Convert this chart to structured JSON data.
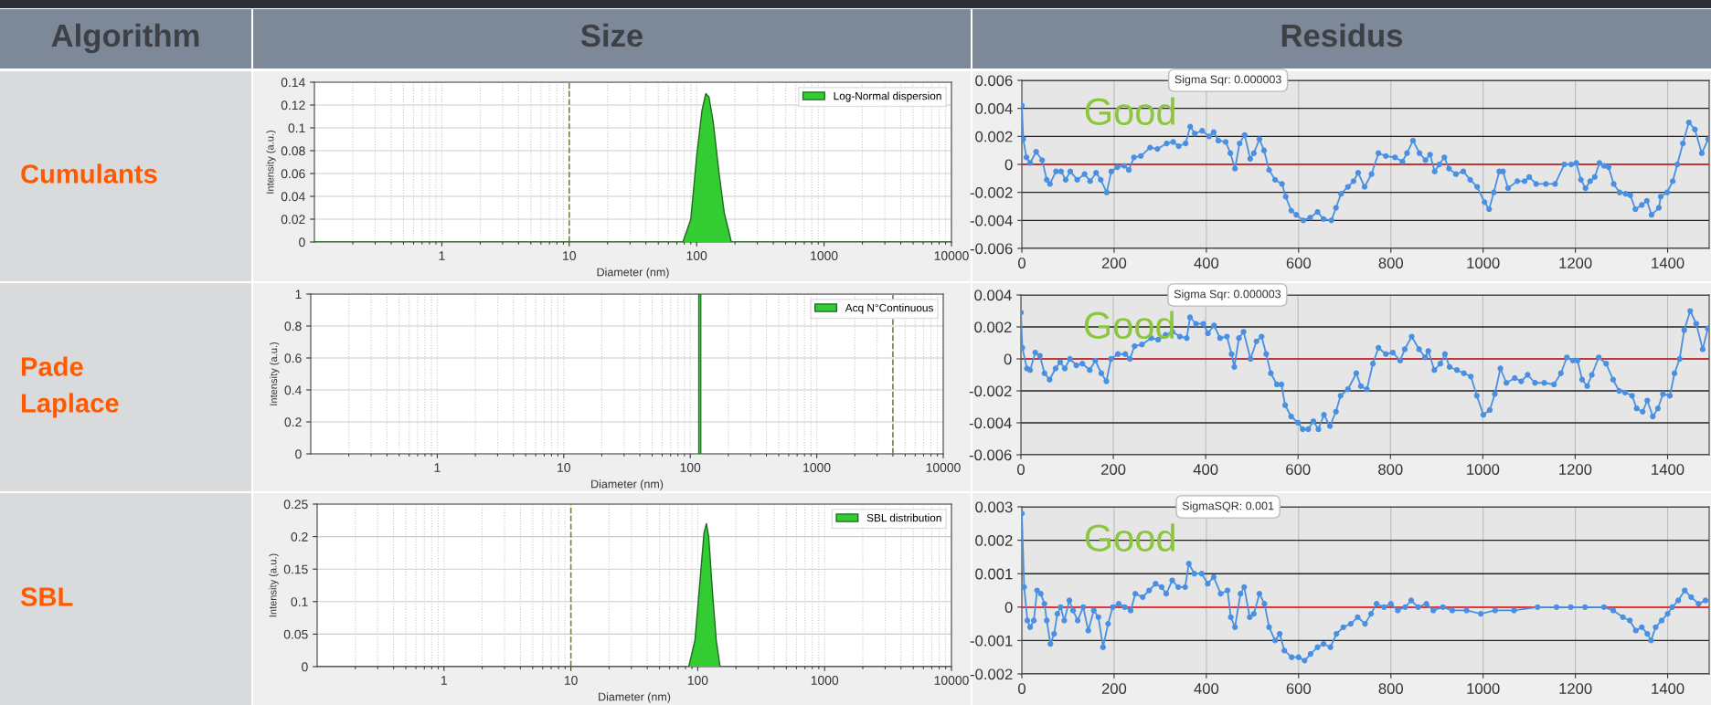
{
  "chart_data": [
    {
      "type": "other",
      "annotations": [
        "Algorithm",
        "Size",
        "Residus",
        "Cumulants",
        "Pade\nLaplace",
        "SBL"
      ]
    },
    {
      "type": "area",
      "xlabel": "Diameter (nm)",
      "ylabel": "Intensity (a.u.)",
      "log": "x",
      "xlim": [
        0.1,
        10000
      ],
      "xticks": [
        1,
        10,
        100,
        1000,
        10000
      ],
      "ylim": [
        0,
        0.14
      ],
      "yticks": [
        0,
        0.02,
        0.04,
        0.06,
        0.08,
        0.1,
        0.12,
        0.14
      ],
      "grid": true,
      "legend": "top right",
      "ref_lines": [
        {
          "axis": "x",
          "value": 10,
          "color": "#7f8050",
          "line_style": "dashed"
        }
      ],
      "series": [
        {
          "name": "Log-Normal dispersion",
          "color": "#33cc33",
          "x": [
            0.1,
            78,
            90,
            100,
            110,
            118,
            125,
            135,
            150,
            165,
            180,
            187,
            10000
          ],
          "values": [
            0,
            0,
            0.02,
            0.075,
            0.115,
            0.13,
            0.127,
            0.105,
            0.06,
            0.025,
            0.008,
            0,
            0
          ]
        }
      ]
    },
    {
      "type": "line",
      "xlim": [
        0,
        1490
      ],
      "xticks": [
        0,
        200,
        400,
        600,
        800,
        1000,
        1200,
        1400
      ],
      "ylim": [
        -0.006,
        0.006
      ],
      "yticks": [
        -0.006,
        -0.004,
        -0.002,
        0,
        0.002,
        0.004,
        0.006
      ],
      "grid": true,
      "marker": "circle",
      "line_style": "solid",
      "ref_lines": [
        {
          "axis": "y",
          "value": 0,
          "color": "#e03030",
          "line_style": "solid"
        }
      ],
      "annotations": [
        "Sigma Sqr: 0.000003",
        "Good"
      ],
      "series": [
        {
          "color": "#4a90e2",
          "x": [
            0,
            3,
            10,
            18,
            31,
            44,
            54,
            61,
            74,
            85,
            95,
            105,
            120,
            136,
            148,
            161,
            171,
            184,
            194,
            207,
            222,
            232,
            243,
            258,
            278,
            294,
            314,
            328,
            340,
            355,
            365,
            375,
            391,
            406,
            416,
            426,
            442,
            452,
            462,
            472,
            483,
            495,
            503,
            515,
            525,
            536,
            549,
            564,
            572,
            584,
            595,
            610,
            625,
            641,
            654,
            671,
            681,
            692,
            707,
            719,
            729,
            743,
            758,
            773,
            789,
            809,
            825,
            835,
            848,
            862,
            875,
            885,
            895,
            905,
            916,
            926,
            941,
            957,
            972,
            987,
            1003,
            1013,
            1023,
            1035,
            1043,
            1054,
            1074,
            1090,
            1100,
            1115,
            1136,
            1156,
            1176,
            1191,
            1202,
            1212,
            1222,
            1232,
            1242,
            1252,
            1262,
            1272,
            1283,
            1296,
            1309,
            1319,
            1330,
            1344,
            1355,
            1365,
            1381,
            1385,
            1399,
            1411,
            1421,
            1433,
            1446,
            1459,
            1474,
            1488
          ],
          "values": [
            0.0042,
            0.0018,
            0.0005,
            0.0001,
            0.0009,
            0.0003,
            -0.0011,
            -0.0014,
            -0.0005,
            -0.0005,
            -0.0011,
            -0.0005,
            -0.0011,
            -0.0007,
            -0.0012,
            -0.0006,
            -0.0011,
            -0.002,
            -0.0005,
            -0.0002,
            -0.0001,
            -0.0004,
            0.0005,
            0.0006,
            0.0012,
            0.0011,
            0.0015,
            0.0016,
            0.0013,
            0.0015,
            0.0027,
            0.0022,
            0.0024,
            0.002,
            0.0023,
            0.0017,
            0.0016,
            0.0008,
            -0.0003,
            0.0015,
            0.0021,
            0.0004,
            0.0008,
            0.0018,
            0.001,
            -0.0004,
            -0.0011,
            -0.0014,
            -0.0023,
            -0.0033,
            -0.0036,
            -0.004,
            -0.0038,
            -0.0034,
            -0.0039,
            -0.004,
            -0.0031,
            -0.0021,
            -0.0016,
            -0.0012,
            -0.0006,
            -0.0016,
            -0.0007,
            0.0008,
            0.0006,
            0.0005,
            0.0002,
            0.0008,
            0.0017,
            0.0008,
            0.0003,
            0.0007,
            -0.0005,
            0,
            0.0005,
            -0.0003,
            -0.0007,
            -0.0005,
            -0.0011,
            -0.0016,
            -0.0027,
            -0.0032,
            -0.002,
            -0.0005,
            -0.0005,
            -0.0017,
            -0.0012,
            -0.0012,
            -0.0009,
            -0.0014,
            -0.0014,
            -0.0014,
            0,
            0,
            0.0001,
            -0.0011,
            -0.0017,
            -0.0012,
            -0.0009,
            0.0001,
            -0.0001,
            -0.0002,
            -0.0014,
            -0.002,
            -0.0021,
            -0.0022,
            -0.0032,
            -0.0029,
            -0.0026,
            -0.0036,
            -0.0031,
            -0.0023,
            -0.002,
            -0.0012,
            0,
            0.0015,
            0.003,
            0.0025,
            0.0008,
            0.0018
          ]
        }
      ]
    },
    {
      "type": "bar",
      "xlabel": "Diameter (nm)",
      "ylabel": "Intensity (a.u.)",
      "log": "x",
      "xlim": [
        0.1,
        10000
      ],
      "xticks": [
        1,
        10,
        100,
        1000,
        10000
      ],
      "ylim": [
        0,
        1
      ],
      "yticks": [
        0,
        0.2,
        0.4,
        0.6,
        0.8,
        1
      ],
      "grid": true,
      "legend": "top right",
      "ref_lines": [
        {
          "axis": "x",
          "value": 4000,
          "color": "#7f8050",
          "line_style": "dashed"
        }
      ],
      "series": [
        {
          "name": "Acq N°Continuous",
          "color": "#33cc33",
          "x": [
            119
          ],
          "values": [
            1
          ]
        }
      ]
    },
    {
      "type": "line",
      "xlim": [
        0,
        1490
      ],
      "xticks": [
        0,
        200,
        400,
        600,
        800,
        1000,
        1200,
        1400
      ],
      "ylim": [
        -0.006,
        0.004
      ],
      "yticks": [
        -0.006,
        -0.004,
        -0.002,
        0,
        0.002,
        0.004
      ],
      "grid": true,
      "marker": "circle",
      "line_style": "solid",
      "ref_lines": [
        {
          "axis": "y",
          "value": 0,
          "color": "#e03030",
          "line_style": "solid"
        }
      ],
      "annotations": [
        "Sigma Sqr: 0.000003",
        "Good"
      ],
      "series": [
        {
          "color": "#4a90e2",
          "x": [
            0,
            3,
            13,
            20,
            31,
            41,
            51,
            62,
            75,
            85,
            95,
            106,
            120,
            133,
            149,
            161,
            174,
            185,
            195,
            210,
            226,
            236,
            246,
            262,
            282,
            297,
            313,
            328,
            344,
            359,
            366,
            379,
            395,
            405,
            418,
            431,
            446,
            456,
            462,
            472,
            482,
            497,
            510,
            521,
            531,
            541,
            554,
            564,
            572,
            585,
            600,
            610,
            622,
            633,
            644,
            656,
            669,
            682,
            692,
            708,
            726,
            736,
            749,
            762,
            774,
            790,
            805,
            821,
            831,
            846,
            862,
            875,
            882,
            895,
            908,
            918,
            928,
            944,
            959,
            974,
            987,
            1001,
            1015,
            1026,
            1038,
            1051,
            1069,
            1083,
            1097,
            1113,
            1133,
            1154,
            1169,
            1182,
            1195,
            1205,
            1215,
            1226,
            1236,
            1251,
            1267,
            1282,
            1295,
            1308,
            1323,
            1333,
            1346,
            1356,
            1368,
            1379,
            1390,
            1405,
            1415,
            1426,
            1436,
            1449,
            1462,
            1476,
            1487
          ],
          "values": [
            0.0029,
            0.0007,
            -0.0006,
            -0.0007,
            0.0004,
            0.0002,
            -0.0009,
            -0.0013,
            -0.0006,
            -0.0002,
            -0.0006,
            0,
            -0.0004,
            -0.0003,
            -0.0007,
            -0.0001,
            -0.0009,
            -0.0014,
            0,
            0.0003,
            0.0003,
            0,
            0.0008,
            0.0009,
            0.0013,
            0.0012,
            0.0015,
            0.0017,
            0.0014,
            0.0013,
            0.0026,
            0.0022,
            0.0022,
            0.0016,
            0.0021,
            0.0013,
            0.0014,
            0.0003,
            -0.0005,
            0.0013,
            0.0017,
            0,
            0.0011,
            0.0014,
            0.0003,
            -0.0009,
            -0.0016,
            -0.0016,
            -0.0029,
            -0.0036,
            -0.004,
            -0.0044,
            -0.0044,
            -0.0039,
            -0.0044,
            -0.0035,
            -0.0042,
            -0.0033,
            -0.0023,
            -0.0019,
            -0.0009,
            -0.0017,
            -0.0019,
            -0.0003,
            0.0007,
            0.0003,
            0.0004,
            -0.0001,
            0.0006,
            0.0014,
            0.0006,
            0.0001,
            0.0005,
            -0.0007,
            -0.0003,
            0.0003,
            -0.0005,
            -0.0007,
            -0.0009,
            -0.0011,
            -0.0023,
            -0.0035,
            -0.0032,
            -0.0022,
            -0.0006,
            -0.0015,
            -0.0012,
            -0.0014,
            -0.001,
            -0.0015,
            -0.0015,
            -0.0016,
            -0.0009,
            0.0001,
            -0.0001,
            -0.0001,
            -0.0013,
            -0.0017,
            -0.001,
            0.0001,
            -0.0003,
            -0.0013,
            -0.002,
            -0.0021,
            -0.0023,
            -0.0031,
            -0.0033,
            -0.0026,
            -0.0036,
            -0.0031,
            -0.0022,
            -0.0023,
            -0.0009,
            0,
            0.0018,
            0.003,
            0.0022,
            0.0006,
            0.0019
          ]
        }
      ]
    },
    {
      "type": "area",
      "xlabel": "Diameter (nm)",
      "ylabel": "Intensity (a.u.)",
      "log": "x",
      "xlim": [
        0.1,
        10000
      ],
      "xticks": [
        1,
        10,
        100,
        1000,
        10000
      ],
      "ylim": [
        0,
        0.25
      ],
      "yticks": [
        0,
        0.05,
        0.1,
        0.15,
        0.2,
        0.25
      ],
      "grid": true,
      "legend": "top right",
      "ref_lines": [
        {
          "axis": "x",
          "value": 10,
          "color": "#7f8050",
          "line_style": "dashed"
        }
      ],
      "series": [
        {
          "name": "SBL distribution",
          "color": "#33cc33",
          "x": [
            0.1,
            85,
            95,
            105,
            112,
            117,
            122,
            130,
            140,
            150,
            10000
          ],
          "values": [
            0,
            0,
            0.04,
            0.14,
            0.205,
            0.22,
            0.2,
            0.12,
            0.04,
            0,
            0
          ]
        }
      ]
    },
    {
      "type": "line",
      "xlim": [
        0,
        1490
      ],
      "xticks": [
        0,
        200,
        400,
        600,
        800,
        1000,
        1200,
        1400
      ],
      "ylim": [
        -0.002,
        0.003
      ],
      "yticks": [
        -0.002,
        -0.001,
        0,
        0.001,
        0.002,
        0.003
      ],
      "grid": true,
      "marker": "circle",
      "line_style": "solid",
      "ref_lines": [
        {
          "axis": "y",
          "value": 0,
          "color": "#e03030",
          "line_style": "solid"
        }
      ],
      "annotations": [
        "SigmaSQR: 0.001",
        "Good"
      ],
      "series": [
        {
          "color": "#4a90e2",
          "x": [
            0,
            5,
            12,
            18,
            26,
            33,
            41,
            49,
            54,
            62,
            70,
            77,
            84,
            92,
            103,
            111,
            121,
            133,
            144,
            156,
            166,
            176,
            187,
            197,
            210,
            223,
            236,
            246,
            262,
            276,
            290,
            303,
            313,
            326,
            339,
            354,
            362,
            374,
            390,
            403,
            416,
            431,
            446,
            453,
            462,
            474,
            482,
            494,
            503,
            515,
            526,
            536,
            549,
            559,
            569,
            585,
            600,
            613,
            626,
            641,
            654,
            669,
            682,
            697,
            713,
            728,
            744,
            757,
            769,
            785,
            800,
            815,
            831,
            844,
            859,
            877,
            892,
            913,
            933,
            964,
            995,
            1026,
            1067,
            1118,
            1159,
            1190,
            1221,
            1262,
            1282,
            1303,
            1318,
            1331,
            1344,
            1356,
            1364,
            1374,
            1387,
            1400,
            1410,
            1423,
            1437,
            1451,
            1467,
            1482
          ],
          "values": [
            0.0028,
            0.0006,
            -0.0004,
            -0.0006,
            -0.0004,
            0.0005,
            0.0004,
            0.0001,
            -0.0004,
            -0.0011,
            -0.0008,
            -0.0002,
            0,
            -0.0004,
            0.0002,
            -0.0001,
            -0.0004,
            0,
            -0.0007,
            -0.0001,
            -0.0003,
            -0.0012,
            -0.0005,
            0,
            0.0001,
            0,
            -0.0001,
            0.0004,
            0.0003,
            0.0005,
            0.0007,
            0.0006,
            0.0004,
            0.0008,
            0.0006,
            0.0006,
            0.0013,
            0.001,
            0.001,
            0.0007,
            0.0009,
            0.0004,
            0.0005,
            -0.0003,
            -0.0006,
            0.0004,
            0.0006,
            -0.0003,
            -0.0002,
            0.0004,
            0.0001,
            -0.0006,
            -0.001,
            -0.0008,
            -0.0013,
            -0.0015,
            -0.0015,
            -0.0016,
            -0.0014,
            -0.0012,
            -0.0011,
            -0.0012,
            -0.0008,
            -0.0006,
            -0.0005,
            -0.0003,
            -0.0005,
            -0.0002,
            0.0001,
            0,
            0.0001,
            -0.0001,
            0,
            0.0002,
            0,
            0.0001,
            -0.0001,
            0,
            -0.0001,
            -0.0001,
            -0.0002,
            -0.0001,
            -0.0001,
            0,
            0,
            0,
            0,
            0,
            -0.0001,
            -0.0003,
            -0.0004,
            -0.0007,
            -0.0006,
            -0.0008,
            -0.001,
            -0.0006,
            -0.0004,
            -0.0002,
            0,
            0.0002,
            0.0005,
            0.0003,
            0.0001,
            0.0002
          ]
        }
      ]
    }
  ]
}
